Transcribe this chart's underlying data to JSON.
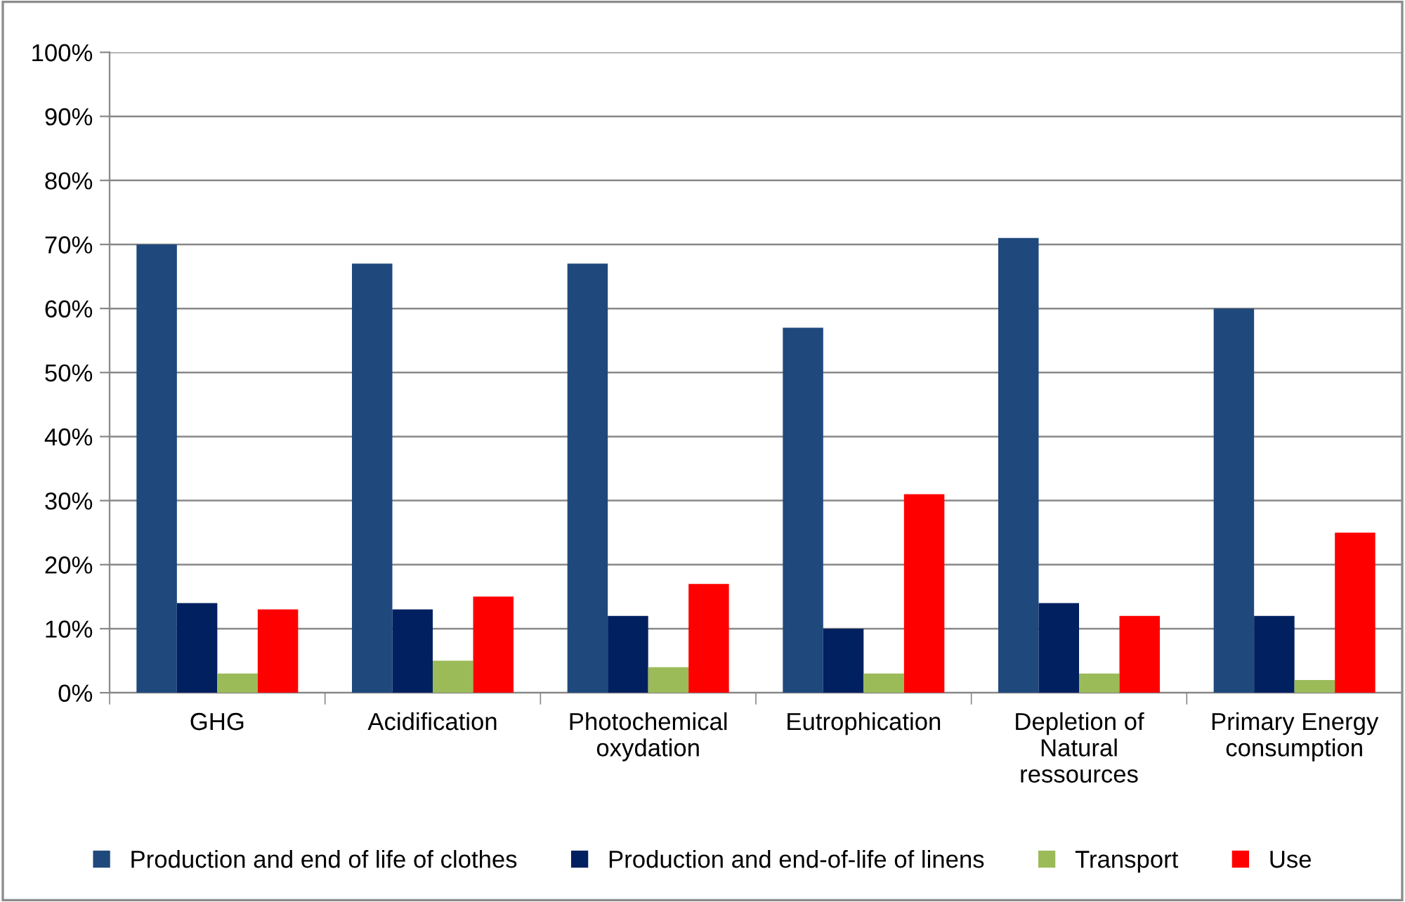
{
  "chart_data": {
    "type": "bar",
    "categories": [
      "GHG",
      "Acidification",
      "Photochemical oxydation",
      "Eutrophication",
      "Depletion of Natural ressources",
      "Primary Energy consumption"
    ],
    "series": [
      {
        "name": "Production and end of life of clothes",
        "color": "#1f497d",
        "values": [
          70,
          67,
          67,
          57,
          71,
          60
        ]
      },
      {
        "name": "Production and end-of-life of linens",
        "color": "#002060",
        "values": [
          14,
          13,
          12,
          10,
          14,
          12
        ]
      },
      {
        "name": "Transport",
        "color": "#9bbb59",
        "values": [
          3,
          5,
          4,
          3,
          3,
          2
        ]
      },
      {
        "name": "Use",
        "color": "#ff0000",
        "values": [
          13,
          15,
          17,
          31,
          12,
          25
        ]
      }
    ],
    "ylim": [
      0,
      100
    ],
    "yticks": [
      {
        "value": 0,
        "label": "0%"
      },
      {
        "value": 10,
        "label": "10%"
      },
      {
        "value": 20,
        "label": "20%"
      },
      {
        "value": 30,
        "label": "30%"
      },
      {
        "value": 40,
        "label": "40%"
      },
      {
        "value": 50,
        "label": "50%"
      },
      {
        "value": 60,
        "label": "60%"
      },
      {
        "value": 70,
        "label": "70%"
      },
      {
        "value": 80,
        "label": "80%"
      },
      {
        "value": 90,
        "label": "90%"
      },
      {
        "value": 100,
        "label": "100%"
      }
    ],
    "grid": "y",
    "legend": "bottom"
  }
}
